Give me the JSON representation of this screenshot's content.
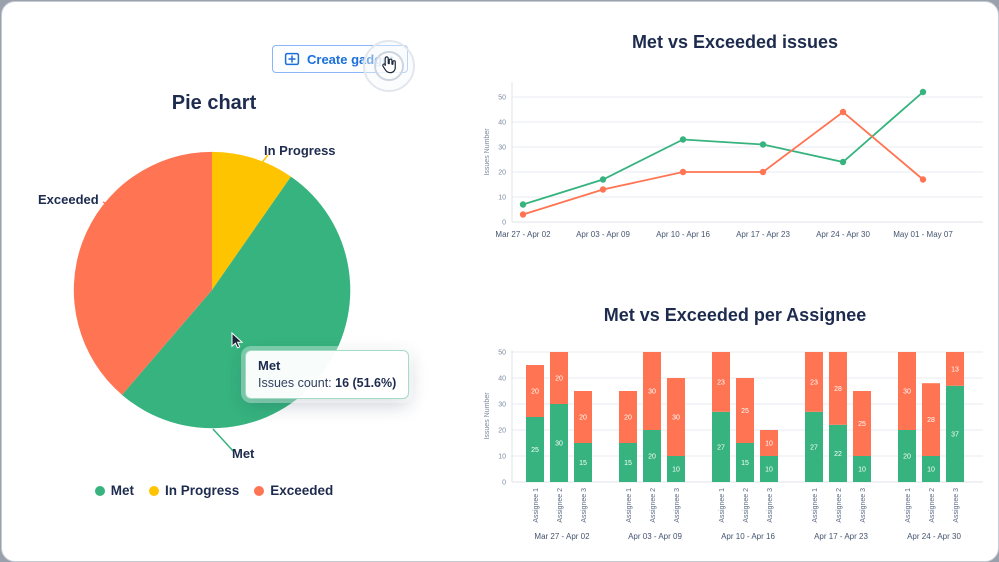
{
  "ui": {
    "create_gadget_label": "Create gadget"
  },
  "pie_tooltip": {
    "title": "Met",
    "count_label": "Issues count:",
    "count_value": "16 (51.6%)"
  },
  "colors": {
    "met": "#36B37E",
    "in_progress": "#FFC400",
    "exceeded": "#FF7452",
    "navy": "#1d2b4e",
    "grid": "#e9ebf0",
    "tick": "#7c8aa0"
  },
  "chart_data": [
    {
      "type": "pie",
      "title": "Pie chart",
      "slices": [
        {
          "label": "In Progress",
          "value": 3,
          "percent": 9.7,
          "color": "#FFC400"
        },
        {
          "label": "Met",
          "value": 16,
          "percent": 51.6,
          "color": "#36B37E"
        },
        {
          "label": "Exceeded",
          "value": 12,
          "percent": 38.7,
          "color": "#FF7452"
        }
      ],
      "legend": [
        {
          "label": "Met",
          "color": "#36B37E"
        },
        {
          "label": "In Progress",
          "color": "#FFC400"
        },
        {
          "label": "Exceeded",
          "color": "#FF7452"
        }
      ]
    },
    {
      "type": "line",
      "title": "Met vs Exceeded issues",
      "ylabel": "Issues Number",
      "ylim": [
        0,
        55
      ],
      "yticks": [
        0,
        10,
        20,
        30,
        40,
        50
      ],
      "grid": true,
      "categories": [
        "Mar 27 - Apr 02",
        "Apr 03 - Apr 09",
        "Apr 10 - Apr 16",
        "Apr 17 - Apr 23",
        "Apr 24 - Apr 30",
        "May 01 - May 07"
      ],
      "series": [
        {
          "name": "Met",
          "color": "#36B37E",
          "values": [
            7,
            17,
            33,
            31,
            24,
            52
          ]
        },
        {
          "name": "Exceeded",
          "color": "#FF7452",
          "values": [
            3,
            13,
            20,
            20,
            44,
            17
          ]
        }
      ]
    },
    {
      "type": "bar",
      "stacked": true,
      "title": "Met vs Exceeded per Assignee",
      "ylabel": "Issues Number",
      "ylim": [
        0,
        52
      ],
      "yticks": [
        0,
        10,
        20,
        30,
        40,
        50
      ],
      "series_colors": {
        "met": "#36B37E",
        "exceeded": "#FF7452"
      },
      "groups": [
        {
          "label": "Mar 27 - Apr 02",
          "bars": [
            {
              "assignee": "Assignee 1",
              "met": 25,
              "exceeded": 20
            },
            {
              "assignee": "Assignee 2",
              "met": 30,
              "exceeded": 20
            },
            {
              "assignee": "Assignee 3",
              "met": 15,
              "exceeded": 20
            }
          ]
        },
        {
          "label": "Apr 03 - Apr 09",
          "bars": [
            {
              "assignee": "Assignee 1",
              "met": 15,
              "exceeded": 20
            },
            {
              "assignee": "Assignee 2",
              "met": 20,
              "exceeded": 30
            },
            {
              "assignee": "Assignee 3",
              "met": 10,
              "exceeded": 30
            }
          ]
        },
        {
          "label": "Apr 10 - Apr 16",
          "bars": [
            {
              "assignee": "Assignee 1",
              "met": 27,
              "exceeded": 23
            },
            {
              "assignee": "Assignee 2",
              "met": 15,
              "exceeded": 25
            },
            {
              "assignee": "Assignee 3",
              "met": 10,
              "exceeded": 10
            }
          ]
        },
        {
          "label": "Apr 17 - Apr 23",
          "bars": [
            {
              "assignee": "Assignee 1",
              "met": 27,
              "exceeded": 23
            },
            {
              "assignee": "Assignee 2",
              "met": 22,
              "exceeded": 28
            },
            {
              "assignee": "Assignee 3",
              "met": 10,
              "exceeded": 25
            }
          ]
        },
        {
          "label": "Apr 24 - Apr 30",
          "bars": [
            {
              "assignee": "Assignee 1",
              "met": 20,
              "exceeded": 30
            },
            {
              "assignee": "Assignee 2",
              "met": 10,
              "exceeded": 28
            },
            {
              "assignee": "Assignee 3",
              "met": 37,
              "exceeded": 13
            }
          ]
        }
      ]
    }
  ]
}
